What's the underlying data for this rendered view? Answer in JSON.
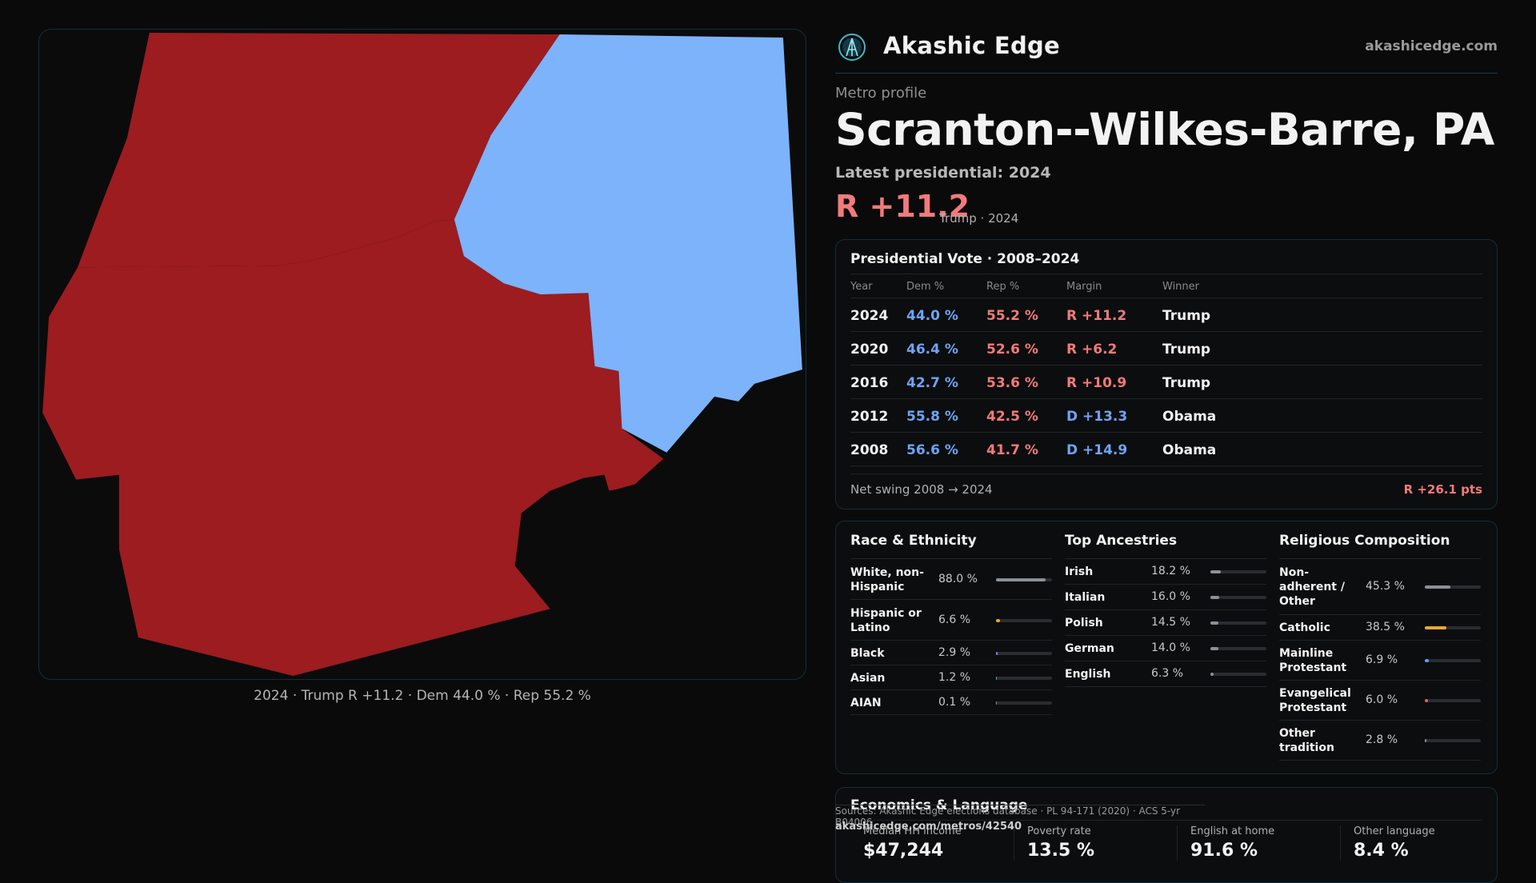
{
  "map": {
    "caption": "2024 · Trump R +11.2 · Dem 44.0 % · Rep 55.2 %",
    "colors": {
      "rep": "#9c1c1f",
      "dem": "#7cb3fb",
      "bg": "#0b0b0c"
    }
  },
  "brand": {
    "name": "Akashic Edge",
    "domain": "akashicedge.com"
  },
  "header": {
    "eyebrow": "Metro profile",
    "title": "Scranton--Wilkes-Barre, PA",
    "subtitle": "Latest presidential: 2024",
    "margin": "R +11.2",
    "margin_note": "Trump · 2024"
  },
  "vote": {
    "title": "Presidential Vote · 2008–2024",
    "columns": [
      "Year",
      "Dem %",
      "Rep %",
      "Margin",
      "Winner"
    ],
    "rows": [
      {
        "year": "2024",
        "dem": "44.0 %",
        "rep": "55.2 %",
        "margin": "R +11.2",
        "winner": "Trump",
        "party": "R"
      },
      {
        "year": "2020",
        "dem": "46.4 %",
        "rep": "52.6 %",
        "margin": "R +6.2",
        "winner": "Trump",
        "party": "R"
      },
      {
        "year": "2016",
        "dem": "42.7 %",
        "rep": "53.6 %",
        "margin": "R +10.9",
        "winner": "Trump",
        "party": "R"
      },
      {
        "year": "2012",
        "dem": "55.8 %",
        "rep": "42.5 %",
        "margin": "D +13.3",
        "winner": "Obama",
        "party": "D"
      },
      {
        "year": "2008",
        "dem": "56.6 %",
        "rep": "41.7 %",
        "margin": "D +14.9",
        "winner": "Obama",
        "party": "D"
      }
    ],
    "swing_label": "Net swing 2008 → 2024",
    "swing_value": "R +26.1 pts"
  },
  "demographics": {
    "race": {
      "title": "Race & Ethnicity",
      "color": "#8a9099",
      "items": [
        {
          "label": "White, non-Hispanic",
          "value": "88.0 %",
          "pct": 88.0,
          "color": "#8a9099"
        },
        {
          "label": "Hispanic or Latino",
          "value": "6.6 %",
          "pct": 6.6,
          "color": "#e3a33a"
        },
        {
          "label": "Black",
          "value": "2.9 %",
          "pct": 2.9,
          "color": "#7f7ff0"
        },
        {
          "label": "Asian",
          "value": "1.2 %",
          "pct": 1.2,
          "color": "#3fbf9f"
        },
        {
          "label": "AIAN",
          "value": "0.1 %",
          "pct": 0.1,
          "color": "#8a9099"
        }
      ]
    },
    "ancestry": {
      "title": "Top Ancestries",
      "items": [
        {
          "label": "Irish",
          "value": "18.2 %",
          "pct": 18.2,
          "color": "#8a9099"
        },
        {
          "label": "Italian",
          "value": "16.0 %",
          "pct": 16.0,
          "color": "#8a9099"
        },
        {
          "label": "Polish",
          "value": "14.5 %",
          "pct": 14.5,
          "color": "#8a9099"
        },
        {
          "label": "German",
          "value": "14.0 %",
          "pct": 14.0,
          "color": "#8a9099"
        },
        {
          "label": "English",
          "value": "6.3 %",
          "pct": 6.3,
          "color": "#8a9099"
        }
      ]
    },
    "religion": {
      "title": "Religious Composition",
      "items": [
        {
          "label": "Non-adherent / Other",
          "value": "45.3 %",
          "pct": 45.3,
          "color": "#8a9099"
        },
        {
          "label": "Catholic",
          "value": "38.5 %",
          "pct": 38.5,
          "color": "#e8a92e"
        },
        {
          "label": "Mainline Protestant",
          "value": "6.9 %",
          "pct": 6.9,
          "color": "#5b9df0"
        },
        {
          "label": "Evangelical Protestant",
          "value": "6.0 %",
          "pct": 6.0,
          "color": "#e06060"
        },
        {
          "label": "Other tradition",
          "value": "2.8 %",
          "pct": 2.8,
          "color": "#8a9099"
        }
      ]
    }
  },
  "economics": {
    "title": "Economics & Language",
    "stats": [
      {
        "label": "Median HH income",
        "value": "$47,244"
      },
      {
        "label": "Poverty rate",
        "value": "13.5 %"
      },
      {
        "label": "English at home",
        "value": "91.6 %"
      },
      {
        "label": "Other language",
        "value": "8.4 %"
      }
    ]
  },
  "footer": {
    "sources": "Sources: Akashic Edge elections database · PL 94-171 (2020) · ACS 5-yr B04006",
    "url": "akashicedge.com/metros/42540"
  }
}
